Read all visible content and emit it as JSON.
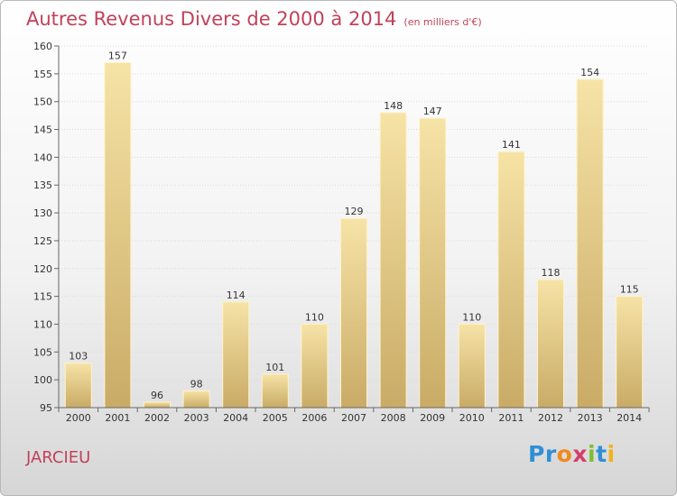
{
  "header": {
    "title": "Autres Revenus Divers de 2000 à 2014",
    "subtitle": "(en milliers d'€)"
  },
  "footer": {
    "town": "JARCIEU",
    "logo_letters": [
      {
        "ch": "P",
        "color": "#2f8fd6"
      },
      {
        "ch": "r",
        "color": "#2f8fd6"
      },
      {
        "ch": "o",
        "color": "#f08a1d"
      },
      {
        "ch": "x",
        "color": "#d43f6a"
      },
      {
        "ch": "i",
        "color": "#7bbf32"
      },
      {
        "ch": "t",
        "color": "#2f8fd6"
      },
      {
        "ch": "i",
        "color": "#f0b21d"
      }
    ]
  },
  "colors": {
    "accent": "#c2415a",
    "bar_light": "#f6e3a6",
    "bar_dark": "#c9ab66"
  },
  "chart_data": {
    "type": "bar",
    "title": "Autres Revenus Divers de 2000 à 2014",
    "subtitle": "(en milliers d'€)",
    "categories": [
      "2000",
      "2001",
      "2002",
      "2003",
      "2004",
      "2005",
      "2006",
      "2007",
      "2008",
      "2009",
      "2010",
      "2011",
      "2012",
      "2013",
      "2014"
    ],
    "values": [
      103,
      157,
      96,
      98,
      114,
      101,
      110,
      129,
      148,
      147,
      110,
      141,
      118,
      154,
      115
    ],
    "ylim": [
      95,
      160
    ],
    "yticks": [
      95,
      100,
      105,
      110,
      115,
      120,
      125,
      130,
      135,
      140,
      145,
      150,
      155,
      160
    ],
    "grid": true,
    "legend": "none"
  }
}
